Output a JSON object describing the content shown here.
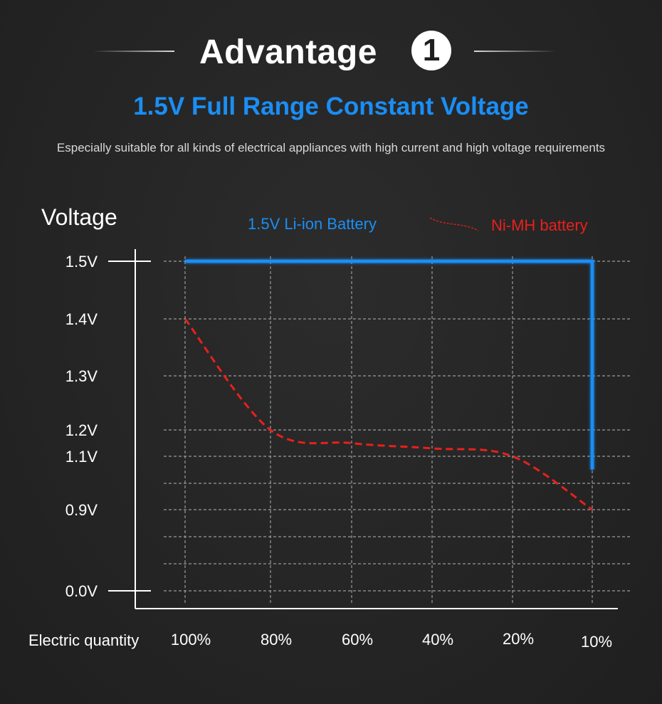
{
  "header": {
    "title": "Advantage",
    "badge": "1",
    "subtitle": "1.5V Full Range Constant Voltage",
    "description": "Especially suitable for all kinds of electrical appliances with high current and high voltage requirements"
  },
  "colors": {
    "background": "#262626",
    "accent_blue": "#1a8ef5",
    "series_red": "#e8201c",
    "grid": "#9a9a9a",
    "text": "#ffffff"
  },
  "chart_data": {
    "type": "line",
    "ylabel": "Voltage",
    "xlabel": "Electric quantity",
    "y_ticks": [
      "1.5V",
      "1.4V",
      "1.3V",
      "1.2V",
      "1.1V",
      "0.9V",
      "0.0V"
    ],
    "x_ticks": [
      "100%",
      "80%",
      "60%",
      "40%",
      "20%",
      "10%"
    ],
    "grid": true,
    "legend_position": "top",
    "series": [
      {
        "name": "1.5V Li-ion Battery",
        "color": "#1a8ef5",
        "points": [
          {
            "x": "100%",
            "y": 1.5
          },
          {
            "x": "10%",
            "y": 1.5
          },
          {
            "x": "10%",
            "y": 1.05
          }
        ]
      },
      {
        "name": "Ni-MH battery",
        "color": "#e8201c",
        "points": [
          {
            "x": "100%",
            "y": 1.4
          },
          {
            "x": "80%",
            "y": 1.2
          },
          {
            "x": "60%",
            "y": 1.15
          },
          {
            "x": "40%",
            "y": 1.13
          },
          {
            "x": "20%",
            "y": 1.1
          },
          {
            "x": "10%",
            "y": 0.9
          }
        ]
      }
    ]
  }
}
